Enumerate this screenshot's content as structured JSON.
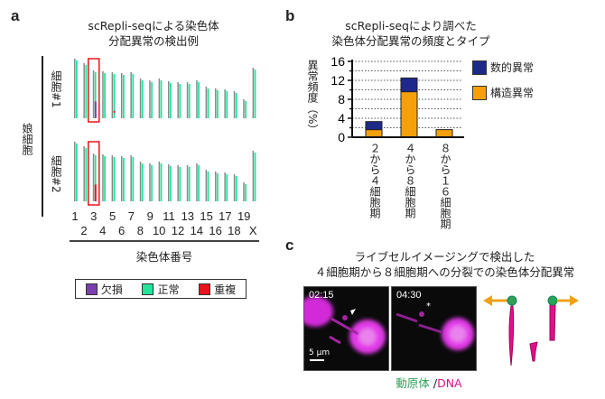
{
  "panel_a": {
    "label": "a",
    "title": [
      "scRepli-seqによる染色体",
      "分配異常の検出例"
    ],
    "group_label": "娘細胞",
    "row_labels": [
      "細胞#1",
      "細胞#2"
    ],
    "chromosome_labels_odd": [
      "1",
      "3",
      "5",
      "7",
      "9",
      "11",
      "13",
      "15",
      "17",
      "19"
    ],
    "chromosome_labels_even": [
      "2",
      "4",
      "6",
      "8",
      "10",
      "12",
      "14",
      "16",
      "18",
      "X"
    ],
    "xlabel": "染色体番号",
    "legend": [
      {
        "label": "欠損",
        "color": "#7b3fb0"
      },
      {
        "label": "正常",
        "color": "#22e59a"
      },
      {
        "label": "重複",
        "color": "#e8141c"
      }
    ]
  },
  "chart_data": [
    {
      "type": "heatmap",
      "chromosomes": [
        "1",
        "2",
        "3",
        "4",
        "5",
        "6",
        "7",
        "8",
        "9",
        "10",
        "11",
        "12",
        "13",
        "14",
        "15",
        "16",
        "17",
        "18",
        "19",
        "X"
      ],
      "relative_length": [
        66,
        61,
        53,
        52,
        51,
        50,
        51,
        44,
        42,
        44,
        41,
        40,
        40,
        42,
        35,
        33,
        32,
        30,
        21,
        56
      ],
      "highlighted_chromosome": "3",
      "cells": [
        {
          "name": "細胞#1",
          "events": [
            {
              "chromosome": "3",
              "type": "欠損",
              "region": [
                0,
                0.35
              ]
            },
            {
              "chromosome": "5",
              "type": "重複",
              "region": [
                0.12,
                0.16
              ]
            }
          ]
        },
        {
          "name": "細胞#2",
          "events": [
            {
              "chromosome": "3",
              "type": "重複",
              "region": [
                0,
                0.35
              ]
            }
          ]
        }
      ]
    },
    {
      "type": "bar",
      "stacked": true,
      "title": [
        "scRepli-seqにより調べた",
        "染色体分配異常の頻度とタイプ"
      ],
      "ylabel": "異常頻度（%）",
      "ylim": [
        0,
        16
      ],
      "yticks": [
        "0",
        "4",
        "8",
        "12",
        "16"
      ],
      "grid": "dotted horizontal",
      "legend_position": "right",
      "categories": [
        "２から４細胞期",
        "４から８細胞期",
        "８から１６細胞期"
      ],
      "series": [
        {
          "name": "構造異常",
          "color": "#f5a00a",
          "values": [
            1.6,
            9.6,
            1.6
          ]
        },
        {
          "name": "数的異常",
          "color": "#1e2a8a",
          "values": [
            1.7,
            2.9,
            0
          ]
        }
      ]
    }
  ],
  "panel_b": {
    "label": "b"
  },
  "panel_c": {
    "label": "c",
    "title": [
      "ライブセルイメージングで検出した",
      "４細胞期から８細胞期への分裂での染色体分配異常"
    ],
    "timestamps": [
      "02:15",
      "04:30"
    ],
    "scale_bar": "5 µm",
    "caption_green": "動原体",
    "caption_sep": " /",
    "caption_magenta": "DNA",
    "colors": {
      "kinetochore": "#2fa05a",
      "dna": "#e0108a",
      "arrow": "#f2a01c"
    }
  }
}
